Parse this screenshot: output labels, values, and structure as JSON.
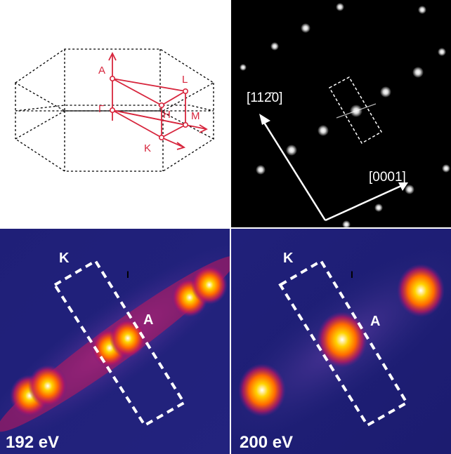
{
  "panel_a": {
    "labels": {
      "A": "A",
      "L": "L",
      "Gamma": "Γ",
      "H": "H",
      "M": "M",
      "K": "K"
    },
    "colors": {
      "box": "#000000",
      "path": "#d7263d"
    }
  },
  "panel_b": {
    "direction_1": "[112̄0]",
    "direction_2": "[0001]",
    "background": "#000000"
  },
  "panel_c": {
    "energy": "192 eV",
    "label_k": "K",
    "label_a": "A",
    "label_i": "I"
  },
  "panel_d": {
    "energy": "200 eV",
    "label_k": "K",
    "label_a": "A",
    "label_i": "I"
  },
  "colormap": [
    "#1a1a6e",
    "#3a2a8c",
    "#c2185b",
    "#ff6a00",
    "#ffd200",
    "#ffffff"
  ]
}
